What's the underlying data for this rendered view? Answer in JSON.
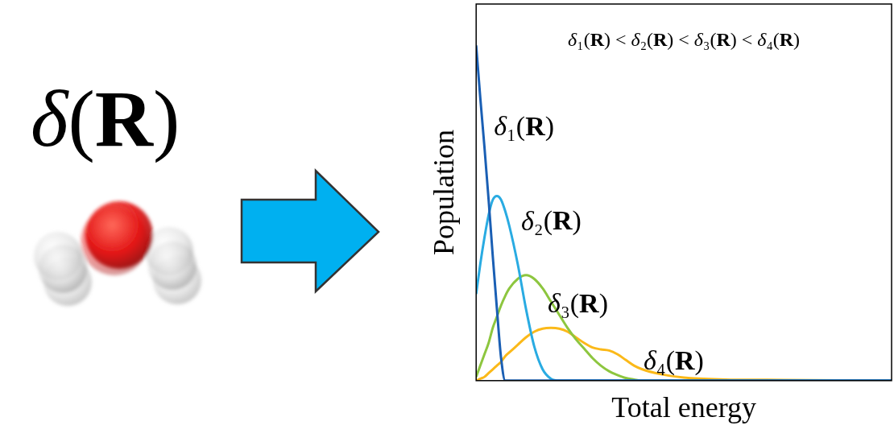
{
  "label": "δ(R)",
  "chart_data": {
    "type": "line",
    "title": "δ₁(R) < δ₂(R) < δ₃(R) < δ₄(R)",
    "x_label": "Total energy",
    "y_label": "Population",
    "x": [
      0,
      1,
      2,
      3,
      4,
      5,
      6,
      7,
      8,
      10,
      12,
      14,
      16,
      18,
      20,
      22,
      24,
      26,
      28,
      30,
      32,
      34,
      36,
      38,
      40,
      44,
      50,
      60,
      70,
      80,
      100
    ],
    "series": [
      {
        "name": "δ₁(R)",
        "color": "#1a5fb4",
        "values": [
          89,
          75,
          62,
          48,
          33,
          19,
          6,
          0,
          0,
          0,
          0,
          0,
          0,
          0,
          0,
          0,
          0,
          0,
          0,
          0,
          0,
          0,
          0,
          0,
          0,
          0,
          0,
          0,
          0,
          0,
          0
        ]
      },
      {
        "name": "δ₂(R)",
        "color": "#29abe2",
        "values": [
          23,
          31,
          38,
          44,
          48,
          49,
          48,
          45,
          41,
          31,
          19,
          9,
          3,
          0.5,
          0,
          0,
          0,
          0,
          0,
          0,
          0,
          0,
          0,
          0,
          0,
          0,
          0,
          0,
          0,
          0,
          0
        ]
      },
      {
        "name": "δ₃(R)",
        "color": "#8dc63f",
        "values": [
          1,
          4,
          7,
          10,
          14,
          17,
          20,
          22.5,
          24.5,
          27,
          28,
          27,
          24.5,
          21,
          17.5,
          14,
          11,
          8.5,
          6,
          4,
          2.5,
          1.5,
          0.7,
          0.3,
          0,
          0,
          0,
          0,
          0,
          0,
          0
        ]
      },
      {
        "name": "δ₄(R)",
        "color": "#fbb919",
        "values": [
          0,
          0.5,
          1,
          2,
          3,
          4,
          5,
          6.5,
          7.5,
          9.5,
          11.5,
          13,
          13.8,
          14,
          13.8,
          13,
          11.5,
          10,
          8.8,
          8.3,
          8,
          7,
          5.5,
          4,
          3,
          1.8,
          0.8,
          0.3,
          0.2,
          0.1,
          0
        ]
      }
    ],
    "xlim": [
      0,
      100
    ],
    "ylim": [
      0,
      100
    ],
    "tick_labels": false,
    "grid": false
  }
}
